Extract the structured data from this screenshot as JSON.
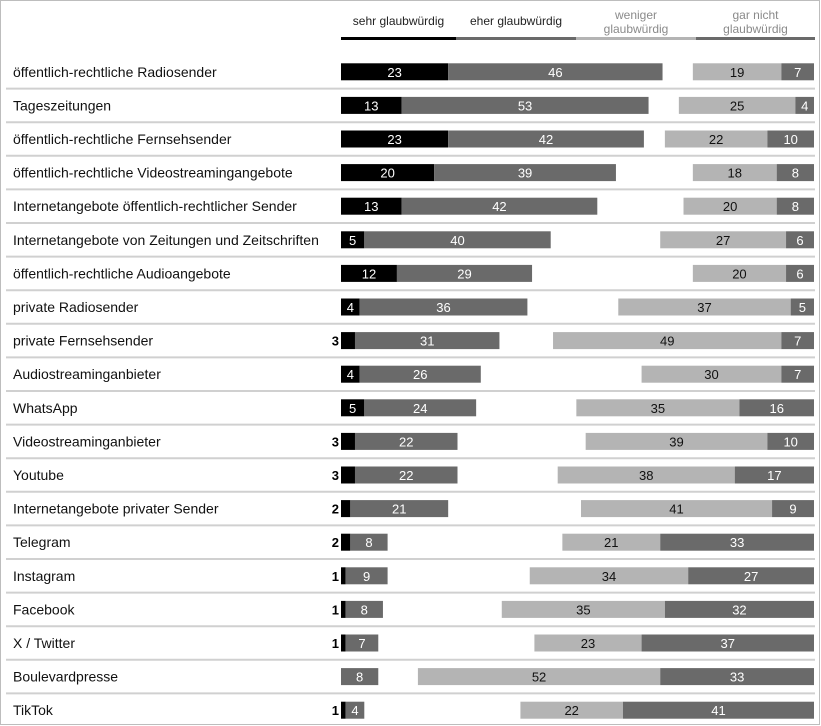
{
  "chart_data": {
    "type": "bar",
    "stacked": true,
    "diverging": true,
    "legend": [
      {
        "label": "sehr glaubwürdig",
        "color": "#000000"
      },
      {
        "label": "eher glaubwürdig",
        "color": "#6a6a6a"
      },
      {
        "label": "weniger glaubwürdig",
        "color": "#b4b4b4"
      },
      {
        "label": "gar nicht glaubwürdig",
        "color": "#6a6a6a"
      }
    ],
    "legend_placement": "top",
    "xlim": [
      0,
      100
    ],
    "categories": [
      "öffentlich-rechtliche Radiosender",
      "Tageszeitungen",
      "öffentlich-rechtliche Fernsehsender",
      "öffentlich-rechtliche Videostreamingangebote",
      "Internetangebote öffentlich-rechtlicher Sender",
      "Internetangebote von Zeitungen und Zeitschriften",
      "öffentlich-rechtliche Audioangebote",
      "private Radiosender",
      "private Fernsehsender",
      "Audiostreaminganbieter",
      "WhatsApp",
      "Videostreaminganbieter",
      "Youtube",
      "Internetangebote privater Sender",
      "Telegram",
      "Instagram",
      "Facebook",
      "X / Twitter",
      "Boulevardpresse",
      "TikTok"
    ],
    "series": [
      {
        "name": "sehr glaubwürdig",
        "values": [
          23,
          13,
          23,
          20,
          13,
          5,
          12,
          4,
          3,
          4,
          5,
          3,
          3,
          2,
          2,
          1,
          1,
          1,
          null,
          1
        ]
      },
      {
        "name": "eher glaubwürdig",
        "values": [
          46,
          53,
          42,
          39,
          42,
          40,
          29,
          36,
          31,
          26,
          24,
          22,
          22,
          21,
          8,
          9,
          8,
          7,
          8,
          4
        ]
      },
      {
        "name": "weniger glaubwürdig",
        "values": [
          19,
          25,
          22,
          18,
          20,
          27,
          20,
          37,
          49,
          30,
          35,
          39,
          38,
          41,
          21,
          34,
          35,
          23,
          52,
          22
        ]
      },
      {
        "name": "gar nicht glaubwürdig",
        "values": [
          7,
          4,
          10,
          8,
          8,
          6,
          6,
          5,
          7,
          7,
          16,
          10,
          17,
          9,
          33,
          27,
          32,
          37,
          33,
          41
        ]
      }
    ]
  }
}
